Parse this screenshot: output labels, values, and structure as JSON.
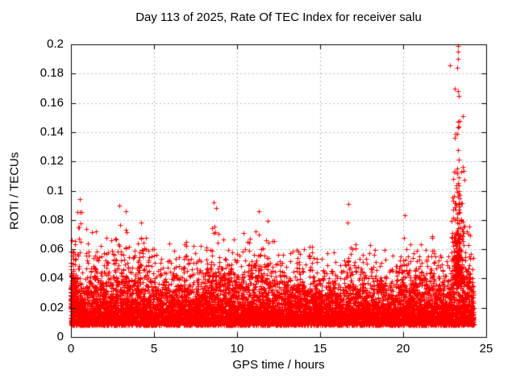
{
  "chart_data": {
    "type": "scatter",
    "title": "Day 113 of 2025, Rate Of TEC Index for receiver salu",
    "xlabel": "GPS time / hours",
    "ylabel": "ROTI / TECUs",
    "xlim": [
      0,
      25
    ],
    "ylim": [
      0,
      0.2
    ],
    "xticks": {
      "values": [
        0,
        5,
        10,
        15,
        20,
        25
      ],
      "labels": [
        "0",
        "5",
        "10",
        "15",
        "20",
        "25"
      ]
    },
    "yticks": {
      "values": [
        0,
        0.02,
        0.04,
        0.06,
        0.08,
        0.1,
        0.12,
        0.14,
        0.16,
        0.18,
        0.2
      ],
      "labels": [
        "0",
        "0.02",
        "0.04",
        "0.06",
        "0.08",
        "0.1",
        "0.12",
        "0.14",
        "0.16",
        "0.18",
        "0.2"
      ]
    },
    "grid": true,
    "legend": "none",
    "marker": "plus",
    "marker_color": "#ff0000",
    "axis_color": "#000000",
    "grid_color": "#b8b8b8",
    "x_data_range": [
      0,
      24.25
    ],
    "description": "Dense red scatter band of ROTI values between about 0.008 and 0.05 TECUs across all 24 hours, with frequent excursions to 0.06-0.09, and a strong enhancement near hour 23.3 reaching 0.2.",
    "generation": {
      "seed": 113,
      "base": {
        "count": 9000,
        "x_min": 0,
        "x_max": 24.25,
        "y_floor": 0.008,
        "y_exp_mean": 0.011,
        "y_cap": 0.068
      },
      "clusters": [
        {
          "x": 0.15,
          "sx": 0.15,
          "n": 120,
          "y0": 0.02,
          "ym": 0.016,
          "cap": 0.066
        },
        {
          "x": 0.5,
          "sx": 0.08,
          "n": 8,
          "y0": 0.055,
          "ym": 0.014,
          "cap": 0.094
        },
        {
          "x": 1.5,
          "sx": 0.4,
          "n": 60,
          "y0": 0.028,
          "ym": 0.014,
          "cap": 0.082
        },
        {
          "x": 3.0,
          "sx": 0.5,
          "n": 80,
          "y0": 0.03,
          "ym": 0.015,
          "cap": 0.09
        },
        {
          "x": 4.3,
          "sx": 0.3,
          "n": 40,
          "y0": 0.03,
          "ym": 0.014,
          "cap": 0.086
        },
        {
          "x": 5.8,
          "sx": 0.4,
          "n": 30,
          "y0": 0.025,
          "ym": 0.012,
          "cap": 0.075
        },
        {
          "x": 7.0,
          "sx": 0.4,
          "n": 30,
          "y0": 0.025,
          "ym": 0.012,
          "cap": 0.072
        },
        {
          "x": 8.7,
          "sx": 0.35,
          "n": 70,
          "y0": 0.03,
          "ym": 0.016,
          "cap": 0.092
        },
        {
          "x": 9.6,
          "sx": 0.3,
          "n": 30,
          "y0": 0.025,
          "ym": 0.012,
          "cap": 0.07
        },
        {
          "x": 10.8,
          "sx": 0.5,
          "n": 60,
          "y0": 0.03,
          "ym": 0.014,
          "cap": 0.08
        },
        {
          "x": 11.5,
          "sx": 0.2,
          "n": 15,
          "y0": 0.04,
          "ym": 0.015,
          "cap": 0.087
        },
        {
          "x": 12.6,
          "sx": 0.4,
          "n": 30,
          "y0": 0.025,
          "ym": 0.012,
          "cap": 0.068
        },
        {
          "x": 13.8,
          "sx": 0.4,
          "n": 40,
          "y0": 0.028,
          "ym": 0.013,
          "cap": 0.076
        },
        {
          "x": 15.0,
          "sx": 0.4,
          "n": 30,
          "y0": 0.025,
          "ym": 0.012,
          "cap": 0.066
        },
        {
          "x": 16.7,
          "sx": 0.15,
          "n": 12,
          "y0": 0.04,
          "ym": 0.016,
          "cap": 0.091
        },
        {
          "x": 17.6,
          "sx": 0.4,
          "n": 30,
          "y0": 0.026,
          "ym": 0.012,
          "cap": 0.071
        },
        {
          "x": 18.8,
          "sx": 0.4,
          "n": 25,
          "y0": 0.025,
          "ym": 0.011,
          "cap": 0.065
        },
        {
          "x": 20.3,
          "sx": 0.5,
          "n": 50,
          "y0": 0.028,
          "ym": 0.013,
          "cap": 0.077
        },
        {
          "x": 21.3,
          "sx": 0.4,
          "n": 35,
          "y0": 0.026,
          "ym": 0.012,
          "cap": 0.07
        },
        {
          "x": 22.2,
          "sx": 0.3,
          "n": 25,
          "y0": 0.025,
          "ym": 0.011,
          "cap": 0.066
        },
        {
          "x": 23.3,
          "sx": 0.18,
          "n": 260,
          "y0": 0.035,
          "ym": 0.03,
          "cap": 0.2
        },
        {
          "x": 23.9,
          "sx": 0.2,
          "n": 40,
          "y0": 0.03,
          "ym": 0.015,
          "cap": 0.09
        }
      ],
      "extreme_points": [
        [
          0.55,
          0.094
        ],
        [
          2.9,
          0.09
        ],
        [
          3.3,
          0.086
        ],
        [
          8.6,
          0.092
        ],
        [
          8.75,
          0.088
        ],
        [
          11.3,
          0.086
        ],
        [
          16.7,
          0.091
        ],
        [
          20.1,
          0.083
        ],
        [
          23.28,
          0.199
        ],
        [
          23.3,
          0.195
        ],
        [
          23.32,
          0.19
        ],
        [
          23.27,
          0.184
        ],
        [
          23.31,
          0.168
        ],
        [
          23.33,
          0.165
        ],
        [
          23.29,
          0.147
        ],
        [
          23.34,
          0.144
        ],
        [
          23.26,
          0.139
        ],
        [
          23.3,
          0.128
        ],
        [
          23.35,
          0.121
        ],
        [
          23.24,
          0.112
        ],
        [
          23.32,
          0.105
        ],
        [
          23.36,
          0.098
        ]
      ]
    }
  }
}
